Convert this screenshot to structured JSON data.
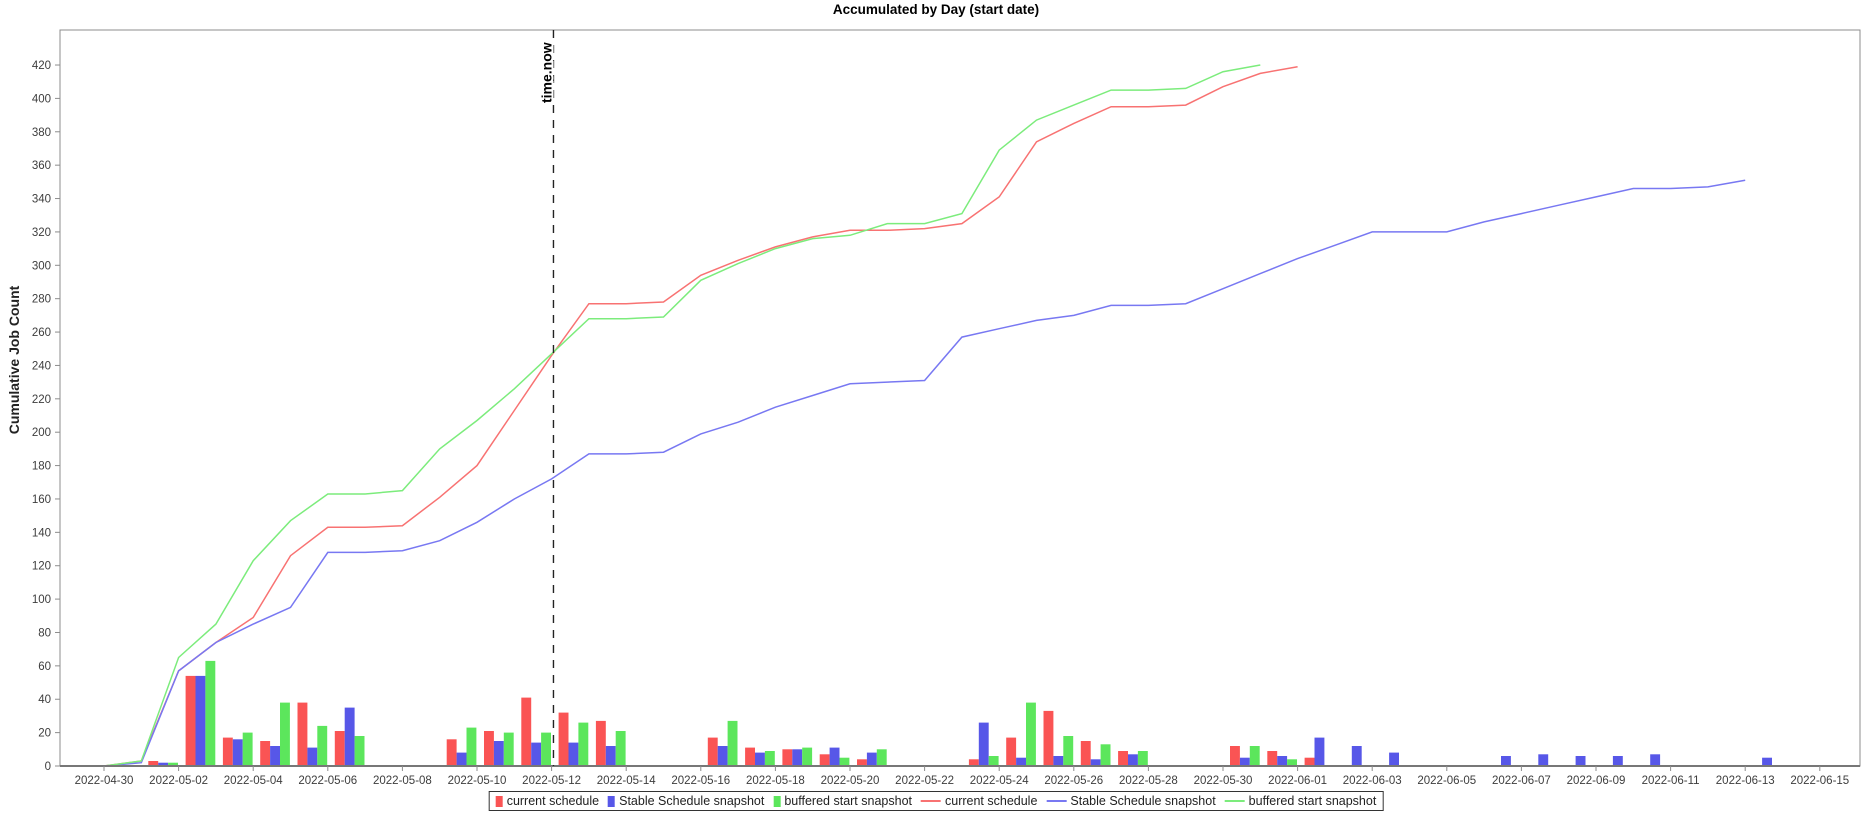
{
  "title": "Accumulated by Day (start date)",
  "y_axis": {
    "label": "Cumulative Job Count",
    "tick_labels": [
      0,
      20,
      40,
      60,
      80,
      100,
      120,
      140,
      160,
      180,
      200,
      220,
      240,
      260,
      280,
      300,
      320,
      340,
      360,
      380,
      400,
      420
    ]
  },
  "x_axis": {
    "tick_labels": [
      "2022-04-30",
      "2022-05-02",
      "2022-05-04",
      "2022-05-06",
      "2022-05-08",
      "2022-05-10",
      "2022-05-12",
      "2022-05-14",
      "2022-05-16",
      "2022-05-18",
      "2022-05-20",
      "2022-05-22",
      "2022-05-24",
      "2022-05-26",
      "2022-05-28",
      "2022-05-30",
      "2022-06-01",
      "2022-06-03",
      "2022-06-05",
      "2022-06-07",
      "2022-06-09",
      "2022-06-11",
      "2022-06-13",
      "2022-06-15"
    ]
  },
  "annotation": {
    "label": "time.now",
    "day_index": 12.05
  },
  "colors": {
    "bar_red": "#fa5454",
    "bar_blue": "#5757e8",
    "bar_green": "#5ce65c",
    "line_red": "#f87272",
    "line_blue": "#7878f2",
    "line_green": "#7cec7c",
    "axis": "#8c8c8c",
    "axis_bottom": "#777777",
    "dashed": "#222222"
  },
  "legend": [
    {
      "type": "bar",
      "label": "current schedule",
      "color": "#fa5454"
    },
    {
      "type": "bar",
      "label": "Stable Schedule snapshot",
      "color": "#5757e8"
    },
    {
      "type": "bar",
      "label": "buffered start snapshot",
      "color": "#5ce65c"
    },
    {
      "type": "line",
      "label": "current schedule",
      "color": "#f87272"
    },
    {
      "type": "line",
      "label": "Stable Schedule snapshot",
      "color": "#7878f2"
    },
    {
      "type": "line",
      "label": "buffered start snapshot",
      "color": "#7cec7c"
    }
  ],
  "chart_data": {
    "type": "bar+line",
    "title": "Accumulated by Day (start date)",
    "ylabel": "Cumulative Job Count",
    "ylim": [
      0,
      440
    ],
    "ytick_step": 20,
    "grid": false,
    "legend_position": "bottom-center",
    "dates": [
      "2022-04-30",
      "2022-05-01",
      "2022-05-02",
      "2022-05-03",
      "2022-05-04",
      "2022-05-05",
      "2022-05-06",
      "2022-05-07",
      "2022-05-08",
      "2022-05-09",
      "2022-05-10",
      "2022-05-11",
      "2022-05-12",
      "2022-05-13",
      "2022-05-14",
      "2022-05-15",
      "2022-05-16",
      "2022-05-17",
      "2022-05-18",
      "2022-05-19",
      "2022-05-20",
      "2022-05-21",
      "2022-05-22",
      "2022-05-23",
      "2022-05-24",
      "2022-05-25",
      "2022-05-26",
      "2022-05-27",
      "2022-05-28",
      "2022-05-29",
      "2022-05-30",
      "2022-05-31",
      "2022-06-01",
      "2022-06-02",
      "2022-06-03",
      "2022-06-04",
      "2022-06-05",
      "2022-06-06",
      "2022-06-07",
      "2022-06-08",
      "2022-06-09",
      "2022-06-10",
      "2022-06-11",
      "2022-06-12",
      "2022-06-13",
      "2022-06-14",
      "2022-06-15"
    ],
    "bar_series": [
      {
        "name": "current schedule",
        "color": "#fa5454",
        "values": [
          0,
          3,
          54,
          17,
          15,
          38,
          21,
          0,
          0,
          16,
          21,
          41,
          32,
          27,
          0,
          0,
          17,
          11,
          10,
          7,
          4,
          0,
          0,
          4,
          17,
          33,
          15,
          9,
          0,
          0,
          12,
          9,
          5,
          0,
          0,
          0,
          0,
          0,
          0,
          0,
          0,
          0,
          0,
          0,
          0,
          0,
          0
        ]
      },
      {
        "name": "Stable Schedule snapshot",
        "color": "#5757e8",
        "values": [
          0,
          2,
          54,
          16,
          12,
          11,
          35,
          0,
          0,
          8,
          15,
          14,
          14,
          12,
          0,
          0,
          12,
          8,
          10,
          11,
          8,
          0,
          0,
          26,
          5,
          6,
          4,
          7,
          0,
          0,
          5,
          6,
          17,
          12,
          8,
          0,
          0,
          6,
          7,
          6,
          6,
          7,
          0,
          0,
          5,
          0,
          0
        ]
      },
      {
        "name": "buffered start snapshot",
        "color": "#5ce65c",
        "values": [
          0,
          2,
          63,
          20,
          38,
          24,
          18,
          0,
          0,
          23,
          20,
          20,
          26,
          21,
          0,
          0,
          27,
          9,
          11,
          5,
          10,
          0,
          0,
          6,
          38,
          18,
          13,
          9,
          0,
          0,
          12,
          4,
          0,
          0,
          0,
          0,
          0,
          0,
          0,
          0,
          0,
          0,
          0,
          0,
          0,
          0,
          0
        ]
      }
    ],
    "line_series": [
      {
        "name": "current schedule",
        "color": "#f87272",
        "values": [
          0,
          3,
          57,
          74,
          89,
          126,
          143,
          143,
          144,
          161,
          180,
          213,
          246,
          277,
          277,
          278,
          294,
          303,
          311,
          317,
          321,
          321,
          322,
          325,
          341,
          374,
          385,
          395,
          395,
          396,
          407,
          415,
          419,
          null,
          null,
          null,
          null,
          null,
          null,
          null,
          null,
          null,
          null,
          null,
          null,
          null,
          null
        ]
      },
      {
        "name": "Stable Schedule snapshot",
        "color": "#7878f2",
        "values": [
          0,
          2,
          57,
          74,
          85,
          95,
          128,
          128,
          129,
          135,
          146,
          160,
          172,
          187,
          187,
          188,
          199,
          206,
          215,
          222,
          229,
          230,
          231,
          257,
          262,
          267,
          270,
          276,
          276,
          277,
          286,
          295,
          304,
          312,
          320,
          320,
          320,
          326,
          331,
          336,
          341,
          346,
          346,
          347,
          351,
          null,
          null
        ]
      },
      {
        "name": "buffered start snapshot",
        "color": "#7cec7c",
        "values": [
          0,
          3,
          65,
          85,
          123,
          147,
          163,
          163,
          165,
          190,
          207,
          226,
          247,
          268,
          268,
          269,
          291,
          301,
          310,
          316,
          318,
          325,
          325,
          331,
          369,
          387,
          396,
          405,
          405,
          406,
          416,
          420,
          null,
          null,
          null,
          null,
          null,
          null,
          null,
          null,
          null,
          null,
          null,
          null,
          null,
          null,
          null
        ]
      }
    ],
    "annotation": {
      "label": "time.now",
      "day_index": 12.05
    }
  }
}
